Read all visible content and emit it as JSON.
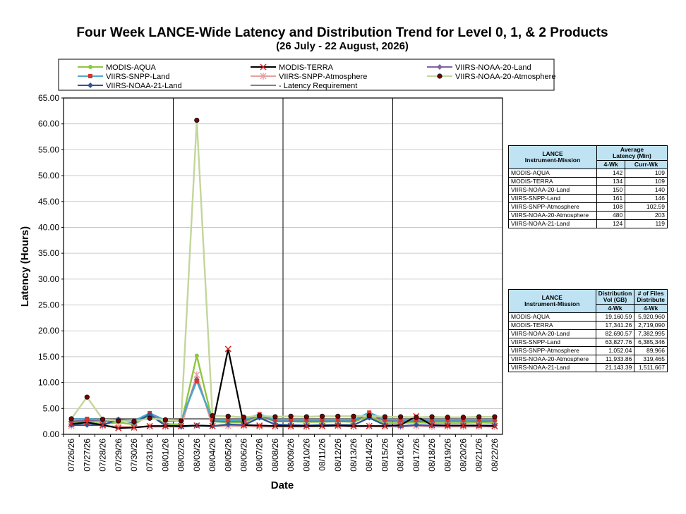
{
  "chart_data": {
    "type": "line",
    "title": "Four Week LANCE-Wide Latency and Distribution Trend for Level 0, 1, & 2 Products",
    "subtitle": "(26  July   - 22  August,  2026)",
    "xlabel": "Date",
    "ylabel": "Latency (Hours)",
    "ylim": [
      0,
      65
    ],
    "yticks": [
      "0.00",
      "5.00",
      "10.00",
      "15.00",
      "20.00",
      "25.00",
      "30.00",
      "35.00",
      "40.00",
      "45.00",
      "50.00",
      "55.00",
      "60.00",
      "65.00"
    ],
    "grid": true,
    "legend_position": "top",
    "categories": [
      "07/26/26",
      "07/27/26",
      "07/28/26",
      "07/29/26",
      "07/30/26",
      "07/31/26",
      "08/01/26",
      "08/02/26",
      "08/03/26",
      "08/04/26",
      "08/05/26",
      "08/06/26",
      "08/07/26",
      "08/08/26",
      "08/09/26",
      "08/10/26",
      "08/11/26",
      "08/12/26",
      "08/13/26",
      "08/14/26",
      "08/15/26",
      "08/16/26",
      "08/17/26",
      "08/18/26",
      "08/19/26",
      "08/20/26",
      "08/21/26",
      "08/22/26"
    ],
    "series": [
      {
        "name": "MODIS-AQUA",
        "color": "#8dc63f",
        "marker": "circle",
        "values": [
          2.2,
          2.5,
          2.0,
          2.3,
          1.9,
          3.8,
          2.0,
          1.9,
          15.2,
          2.5,
          2.3,
          2.3,
          3.5,
          2.5,
          2.5,
          2.4,
          2.4,
          2.5,
          2.4,
          3.5,
          2.2,
          2.2,
          2.3,
          2.2,
          2.2,
          2.2,
          2.3,
          2.2
        ]
      },
      {
        "name": "MODIS-TERRA",
        "color": "#000000",
        "marker": "x",
        "values": [
          2.0,
          2.3,
          1.8,
          1.2,
          1.3,
          1.6,
          1.6,
          1.6,
          1.7,
          1.6,
          16.5,
          1.8,
          1.7,
          1.6,
          1.6,
          1.6,
          1.6,
          1.7,
          1.6,
          1.6,
          1.6,
          1.8,
          3.5,
          1.8,
          1.7,
          1.7,
          1.7,
          1.6
        ]
      },
      {
        "name": "VIIRS-NOAA-20-Land",
        "color": "#8064a2",
        "marker": "diamond",
        "values": [
          2.5,
          2.7,
          2.6,
          2.6,
          2.6,
          4.0,
          2.6,
          2.6,
          10.6,
          2.6,
          2.5,
          2.6,
          3.7,
          2.6,
          2.6,
          2.6,
          2.6,
          2.6,
          2.6,
          4.0,
          2.6,
          2.6,
          2.6,
          2.6,
          2.6,
          2.6,
          2.6,
          2.6
        ]
      },
      {
        "name": "VIIRS-SNPP-Land",
        "color": "#4aacc6",
        "marker": "square",
        "values": [
          2.9,
          3.0,
          2.8,
          2.8,
          2.6,
          4.1,
          2.7,
          2.7,
          10.3,
          2.8,
          2.7,
          2.8,
          3.9,
          2.8,
          2.8,
          2.8,
          2.8,
          2.8,
          2.8,
          4.2,
          2.9,
          2.8,
          2.8,
          2.8,
          2.8,
          2.8,
          2.8,
          2.8
        ]
      },
      {
        "name": "VIIRS-SNPP-Atmosphere",
        "color": "#e6a09f",
        "marker": "star",
        "values": [
          1.6,
          2.4,
          1.6,
          1.5,
          1.4,
          1.5,
          1.5,
          1.5,
          11.5,
          1.6,
          1.6,
          1.6,
          1.5,
          1.5,
          1.5,
          1.5,
          1.6,
          1.6,
          1.5,
          1.6,
          1.5,
          1.5,
          1.6,
          1.5,
          1.5,
          1.5,
          1.5,
          1.5
        ]
      },
      {
        "name": "VIIRS-NOAA-20-Atmosphere",
        "color": "#c3d69b",
        "marker": "dot",
        "values": [
          3.0,
          7.2,
          2.9,
          2.6,
          2.5,
          3.1,
          2.8,
          2.6,
          60.7,
          3.6,
          3.5,
          3.3,
          3.6,
          3.4,
          3.5,
          3.4,
          3.5,
          3.5,
          3.5,
          3.6,
          3.4,
          3.4,
          3.3,
          3.4,
          3.3,
          3.3,
          3.4,
          3.4
        ]
      },
      {
        "name": "VIIRS-NOAA-21-Land",
        "color": "#2e5597",
        "marker": "diamond",
        "values": [
          1.8,
          1.8,
          1.8,
          2.9,
          2.2,
          3.8,
          1.7,
          1.5,
          1.7,
          1.6,
          1.9,
          1.8,
          3.2,
          1.9,
          1.8,
          1.7,
          1.8,
          1.8,
          1.8,
          3.2,
          1.8,
          1.6,
          1.8,
          1.7,
          1.7,
          1.7,
          1.7,
          1.7
        ]
      },
      {
        "name": "Latency Requirement",
        "legend_label": "- Latency Requirement",
        "color": "#808080",
        "marker": "none",
        "values": [
          3,
          3,
          3,
          3,
          3,
          3,
          3,
          3,
          3,
          3,
          3,
          3,
          3,
          3,
          3,
          3,
          3,
          3,
          3,
          3,
          3,
          3,
          3,
          3,
          3,
          3,
          3,
          3
        ]
      }
    ]
  },
  "latency_table": {
    "col1_header": "LANCE\nInstrument-Mission",
    "col2_header": "Average\nLatency (Min)",
    "sub_4wk": "4-Wk",
    "sub_curr": "Curr-Wk",
    "rows": [
      {
        "name": "MODIS-AQUA",
        "wk4": "142",
        "curr": "109"
      },
      {
        "name": "MODIS-TERRA",
        "wk4": "134",
        "curr": "109"
      },
      {
        "name": "VIIRS-NOAA-20-Land",
        "wk4": "150",
        "curr": "140"
      },
      {
        "name": "VIIRS-SNPP-Land",
        "wk4": "161",
        "curr": "146"
      },
      {
        "name": "VIIRS-SNPP-Atmosphere",
        "wk4": "108",
        "curr": "102.59"
      },
      {
        "name": "VIIRS-NOAA-20-Atmosphere",
        "wk4": "480",
        "curr": "203"
      },
      {
        "name": "VIIRS-NOAA-21-Land",
        "wk4": "124",
        "curr": "119"
      }
    ]
  },
  "distribution_table": {
    "col1_header": "LANCE\nInstrument-Mission",
    "col2_header": "Distribution\nVol (GB)",
    "col3_header": "# of Files\nDistribute",
    "sub_4wk": "4-Wk",
    "rows": [
      {
        "name": "MODIS-AQUA",
        "vol": "19,160.59",
        "files": "5,920,960"
      },
      {
        "name": "MODIS-TERRA",
        "vol": "17,341.26",
        "files": "2,719,090"
      },
      {
        "name": "VIIRS-NOAA-20-Land",
        "vol": "82,690.57",
        "files": "7,382,995"
      },
      {
        "name": "VIIRS-SNPP-Land",
        "vol": "63,827.76",
        "files": "6,385,346"
      },
      {
        "name": "VIIRS-SNPP-Atmosphere",
        "vol": "1,052.04",
        "files": "89,966"
      },
      {
        "name": "VIIRS-NOAA-20-Atmosphere",
        "vol": "11,933.86",
        "files": "319,465"
      },
      {
        "name": "VIIRS-NOAA-21-Land",
        "vol": "21,143.39",
        "files": "1,511,667"
      }
    ]
  }
}
